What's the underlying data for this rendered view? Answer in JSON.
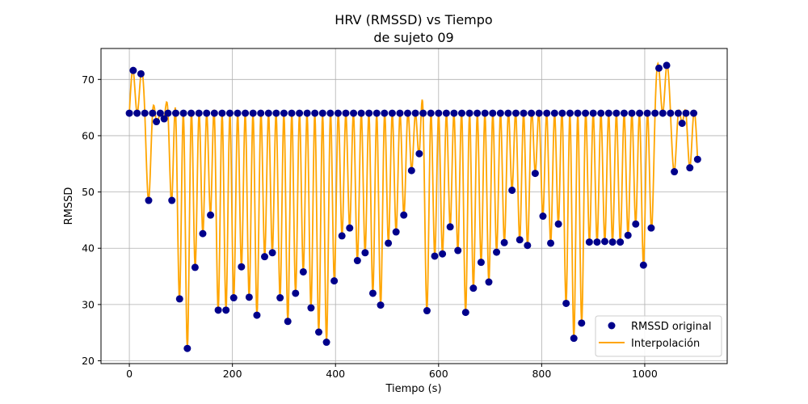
{
  "chart_data": {
    "type": "scatter",
    "title": "HRV (RMSSD) vs Tiempo",
    "subtitle": "de sujeto 09",
    "xlabel": "Tiempo (s)",
    "ylabel": "RMSSD",
    "xlim": [
      -55,
      1160
    ],
    "ylim": [
      19.5,
      75.5
    ],
    "xticks": [
      0,
      200,
      400,
      600,
      800,
      1000
    ],
    "yticks": [
      20,
      30,
      40,
      50,
      60,
      70
    ],
    "grid": true,
    "legend": "bottom-right",
    "series": [
      {
        "name": "RMSSD original",
        "kind": "markers",
        "color": "#00008B",
        "x": [
          0,
          7.5,
          15,
          22.5,
          30,
          37.5,
          45,
          52.5,
          60,
          67.5,
          75,
          82.5,
          90,
          97.5,
          105,
          112.5,
          120,
          127.5,
          135,
          142.5,
          150,
          157.5,
          165,
          172.5,
          180,
          187.5,
          195,
          202.5,
          210,
          217.5,
          225,
          232.5,
          240,
          247.5,
          255,
          262.5,
          270,
          277.5,
          285,
          292.5,
          300,
          307.5,
          315,
          322.5,
          330,
          337.5,
          345,
          352.5,
          360,
          367.5,
          375,
          382.5,
          390,
          397.5,
          405,
          412.5,
          420,
          427.5,
          435,
          442.5,
          450,
          457.5,
          465,
          472.5,
          480,
          487.5,
          495,
          502.5,
          510,
          517.5,
          525,
          532.5,
          540,
          547.5,
          555,
          562.5,
          570,
          577.5,
          585,
          592.5,
          600,
          607.5,
          615,
          622.5,
          630,
          637.5,
          645,
          652.5,
          660,
          667.5,
          675,
          682.5,
          690,
          697.5,
          705,
          712.5,
          720,
          727.5,
          735,
          742.5,
          750,
          757.5,
          765,
          772.5,
          780,
          787.5,
          795,
          802.5,
          810,
          817.5,
          825,
          832.5,
          840,
          847.5,
          855,
          862.5,
          870,
          877.5,
          885,
          892.5,
          900,
          907.5,
          915,
          922.5,
          930,
          937.5,
          945,
          952.5,
          960,
          967.5,
          975,
          982.5,
          990,
          997.5,
          1005,
          1012.5,
          1020,
          1027.5,
          1035,
          1042.5,
          1050,
          1057.5,
          1065,
          1072.5,
          1080,
          1087.5,
          1095,
          1102.5
        ],
        "y": [
          64,
          71.6,
          64,
          71,
          64,
          48.5,
          64,
          62.5,
          64,
          63,
          64,
          48.5,
          64,
          31,
          64,
          22.2,
          64,
          36.6,
          64,
          42.6,
          64,
          45.9,
          64,
          29,
          64,
          29,
          64,
          31.2,
          64,
          36.7,
          64,
          31.3,
          64,
          28.1,
          64,
          38.5,
          64,
          39.2,
          64,
          31.2,
          64,
          27,
          64,
          32,
          64,
          35.8,
          64,
          29.4,
          64,
          25.1,
          64,
          23.3,
          64,
          34.2,
          64,
          42.2,
          64,
          43.6,
          64,
          37.8,
          64,
          39.2,
          64,
          32,
          64,
          29.9,
          64,
          40.9,
          64,
          42.9,
          64,
          45.9,
          64,
          53.8,
          64,
          56.8,
          64,
          28.9,
          64,
          38.6,
          64,
          39,
          64,
          43.8,
          64,
          39.6,
          64,
          28.6,
          64,
          32.9,
          64,
          37.5,
          64,
          34,
          64,
          39.3,
          64,
          41,
          64,
          50.3,
          64,
          41.5,
          64,
          40.5,
          64,
          53.3,
          64,
          45.7,
          64,
          40.9,
          64,
          44.3,
          64,
          30.2,
          64,
          24,
          64,
          26.7,
          64,
          41.1,
          64,
          41.1,
          64,
          41.2,
          64,
          41.1,
          64,
          41.1,
          64,
          42.3,
          64,
          44.3,
          64,
          37,
          64,
          43.6,
          64,
          72,
          64,
          72.5,
          64,
          53.6,
          64,
          62.2,
          64,
          54.3,
          64,
          55.8
        ]
      },
      {
        "name": "Interpolación",
        "kind": "line",
        "color": "#FFA500"
      }
    ]
  }
}
